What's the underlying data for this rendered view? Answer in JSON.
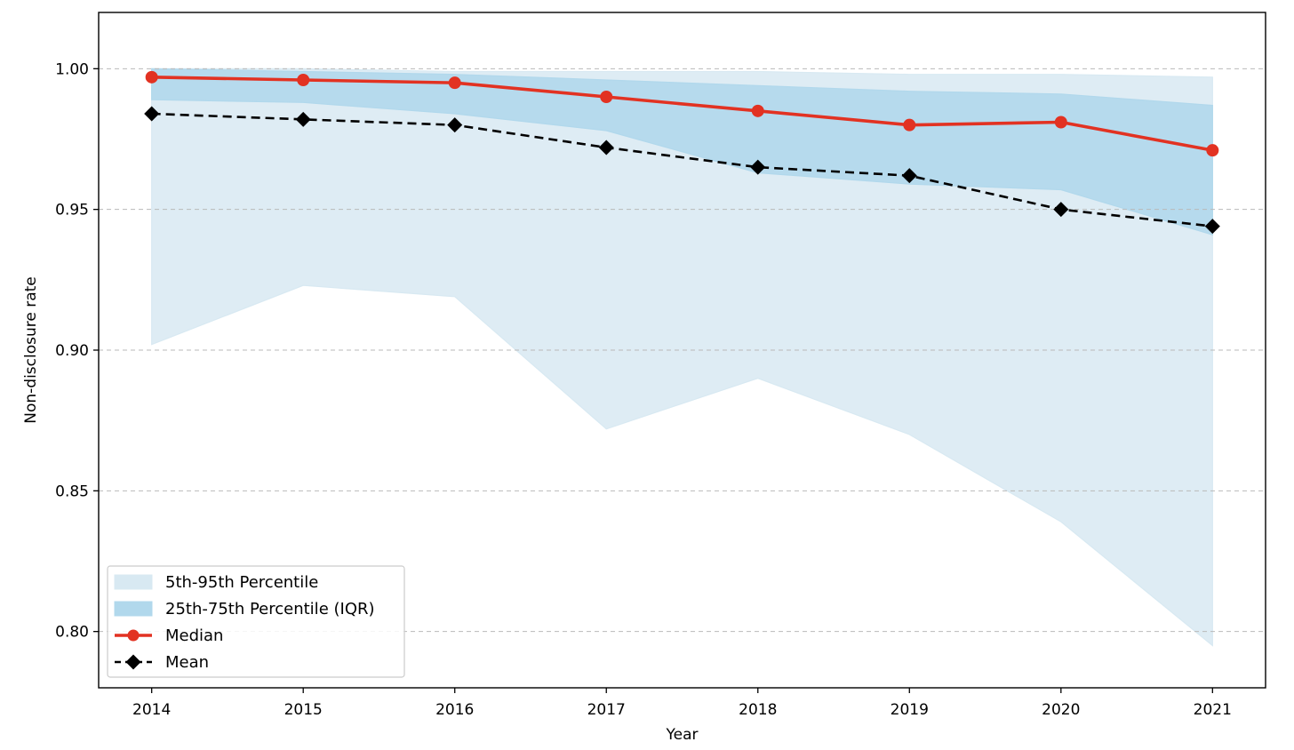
{
  "chart_data": {
    "type": "line",
    "xlabel": "Year",
    "ylabel": "Non-disclosure rate",
    "x": [
      2014,
      2015,
      2016,
      2017,
      2018,
      2019,
      2020,
      2021
    ],
    "xlim": [
      2013.65,
      2021.35
    ],
    "ylim": [
      0.78,
      1.02
    ],
    "yticks": [
      0.8,
      0.85,
      0.9,
      0.95,
      1.0
    ],
    "ytick_labels": [
      "0.80",
      "0.85",
      "0.90",
      "0.95",
      "1.00"
    ],
    "grid": {
      "y": true,
      "style": "dashed"
    },
    "legend_position": "bottom-left",
    "bands": [
      {
        "name": "5th-95th Percentile",
        "lower": [
          0.902,
          0.923,
          0.919,
          0.872,
          0.89,
          0.87,
          0.839,
          0.795
        ],
        "upper": [
          1.0,
          1.0,
          0.999,
          0.999,
          0.999,
          0.998,
          0.998,
          0.997
        ],
        "color": "#d8e9f2"
      },
      {
        "name": "25th-75th Percentile (IQR)",
        "lower": [
          0.989,
          0.988,
          0.984,
          0.978,
          0.963,
          0.959,
          0.957,
          0.941
        ],
        "upper": [
          1.0,
          0.999,
          0.998,
          0.996,
          0.994,
          0.992,
          0.991,
          0.987
        ],
        "color": "#b1d8ec"
      }
    ],
    "series": [
      {
        "name": "Median",
        "values": [
          0.997,
          0.996,
          0.995,
          0.99,
          0.985,
          0.98,
          0.981,
          0.971
        ],
        "color": "#e23222",
        "marker": "circle",
        "line": "solid"
      },
      {
        "name": "Mean",
        "values": [
          0.984,
          0.982,
          0.98,
          0.972,
          0.965,
          0.962,
          0.95,
          0.944
        ],
        "color": "#000000",
        "marker": "diamond",
        "line": "dashed"
      }
    ]
  }
}
